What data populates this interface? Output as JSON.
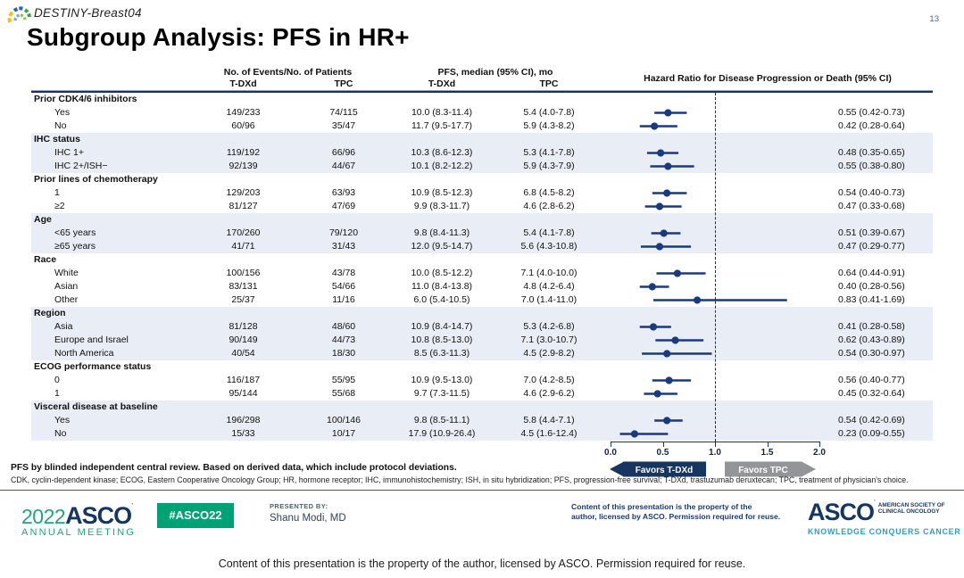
{
  "slide": {
    "trial_name": "DESTINY-Breast04",
    "page_number": "13",
    "title": "Subgroup Analysis: PFS in HR+"
  },
  "colors": {
    "navy": "#1a3a7e",
    "band": "#e9edf5",
    "favors_tpc_gray": "#939598",
    "asco_green": "#00a175",
    "asco_navy": "#16355f",
    "asco_teal": "#2a9fc0"
  },
  "table": {
    "col_headers": {
      "events_group": "No. of Events/No. of Patients",
      "pfs_group": "PFS, median (95% CI), mo",
      "hr_group": "Hazard Ratio for Disease Progression or Death  (95% CI)",
      "tdxd": "T-DXd",
      "tpc": "TPC"
    },
    "sections": [
      {
        "label": "Prior CDK4/6 inhibitors",
        "shaded": false,
        "rows": [
          {
            "label": "Yes",
            "events_tdxd": "149/233",
            "events_tpc": "74/115",
            "pfs_tdxd": "10.0 (8.3-11.4)",
            "pfs_tpc": "5.4 (4.0-7.8)",
            "hr": 0.55,
            "lo": 0.42,
            "hi": 0.73,
            "hr_text": "0.55 (0.42-0.73)"
          },
          {
            "label": "No",
            "events_tdxd": "60/96",
            "events_tpc": "35/47",
            "pfs_tdxd": "11.7 (9.5-17.7)",
            "pfs_tpc": "5.9 (4.3-8.2)",
            "hr": 0.42,
            "lo": 0.28,
            "hi": 0.64,
            "hr_text": "0.42 (0.28-0.64)"
          }
        ]
      },
      {
        "label": "IHC status",
        "shaded": true,
        "rows": [
          {
            "label": "IHC 1+",
            "events_tdxd": "119/192",
            "events_tpc": "66/96",
            "pfs_tdxd": "10.3 (8.6-12.3)",
            "pfs_tpc": "5.3 (4.1-7.8)",
            "hr": 0.48,
            "lo": 0.35,
            "hi": 0.65,
            "hr_text": "0.48 (0.35-0.65)"
          },
          {
            "label": "IHC 2+/ISH−",
            "events_tdxd": "92/139",
            "events_tpc": "44/67",
            "pfs_tdxd": "10.1 (8.2-12.2)",
            "pfs_tpc": "5.9 (4.3-7.9)",
            "hr": 0.55,
            "lo": 0.38,
            "hi": 0.8,
            "hr_text": "0.55 (0.38-0.80)"
          }
        ]
      },
      {
        "label": "Prior lines of chemotherapy",
        "shaded": false,
        "rows": [
          {
            "label": "1",
            "events_tdxd": "129/203",
            "events_tpc": "63/93",
            "pfs_tdxd": "10.9 (8.5-12.3)",
            "pfs_tpc": "6.8 (4.5-8.2)",
            "hr": 0.54,
            "lo": 0.4,
            "hi": 0.73,
            "hr_text": "0.54 (0.40-0.73)"
          },
          {
            "label": "≥2",
            "events_tdxd": "81/127",
            "events_tpc": "47/69",
            "pfs_tdxd": "9.9 (8.3-11.7)",
            "pfs_tpc": "4.6 (2.8-6.2)",
            "hr": 0.47,
            "lo": 0.33,
            "hi": 0.68,
            "hr_text": "0.47 (0.33-0.68)"
          }
        ]
      },
      {
        "label": "Age",
        "shaded": true,
        "rows": [
          {
            "label": "<65 years",
            "events_tdxd": "170/260",
            "events_tpc": "79/120",
            "pfs_tdxd": "9.8 (8.4-11.3)",
            "pfs_tpc": "5.4 (4.1-7.8)",
            "hr": 0.51,
            "lo": 0.39,
            "hi": 0.67,
            "hr_text": "0.51 (0.39-0.67)"
          },
          {
            "label": "≥65 years",
            "events_tdxd": "41/71",
            "events_tpc": "31/43",
            "pfs_tdxd": "12.0 (9.5-14.7)",
            "pfs_tpc": "5.6 (4.3-10.8)",
            "hr": 0.47,
            "lo": 0.29,
            "hi": 0.77,
            "hr_text": "0.47 (0.29-0.77)"
          }
        ]
      },
      {
        "label": "Race",
        "shaded": false,
        "rows": [
          {
            "label": "White",
            "events_tdxd": "100/156",
            "events_tpc": "43/78",
            "pfs_tdxd": "10.0 (8.5-12.2)",
            "pfs_tpc": "7.1 (4.0-10.0)",
            "hr": 0.64,
            "lo": 0.44,
            "hi": 0.91,
            "hr_text": "0.64 (0.44-0.91)"
          },
          {
            "label": "Asian",
            "events_tdxd": "83/131",
            "events_tpc": "54/66",
            "pfs_tdxd": "11.0 (8.4-13.8)",
            "pfs_tpc": "4.8 (4.2-6.4)",
            "hr": 0.4,
            "lo": 0.28,
            "hi": 0.56,
            "hr_text": "0.40 (0.28-0.56)"
          },
          {
            "label": "Other",
            "events_tdxd": "25/37",
            "events_tpc": "11/16",
            "pfs_tdxd": "6.0 (5.4-10.5)",
            "pfs_tpc": "7.0 (1.4-11.0)",
            "hr": 0.83,
            "lo": 0.41,
            "hi": 1.69,
            "hr_text": "0.83 (0.41-1.69)"
          }
        ]
      },
      {
        "label": "Region",
        "shaded": true,
        "rows": [
          {
            "label": "Asia",
            "events_tdxd": "81/128",
            "events_tpc": "48/60",
            "pfs_tdxd": "10.9 (8.4-14.7)",
            "pfs_tpc": "5.3 (4.2-6.8)",
            "hr": 0.41,
            "lo": 0.28,
            "hi": 0.58,
            "hr_text": "0.41 (0.28-0.58)"
          },
          {
            "label": "Europe and Israel",
            "events_tdxd": "90/149",
            "events_tpc": "44/73",
            "pfs_tdxd": "10.8 (8.5-13.0)",
            "pfs_tpc": "7.1 (3.0-10.7)",
            "hr": 0.62,
            "lo": 0.43,
            "hi": 0.89,
            "hr_text": "0.62 (0.43-0.89)"
          },
          {
            "label": "North America",
            "events_tdxd": "40/54",
            "events_tpc": "18/30",
            "pfs_tdxd": "8.5 (6.3-11.3)",
            "pfs_tpc": "4.5 (2.9-8.2)",
            "hr": 0.54,
            "lo": 0.3,
            "hi": 0.97,
            "hr_text": "0.54 (0.30-0.97)"
          }
        ]
      },
      {
        "label": "ECOG performance status",
        "shaded": false,
        "rows": [
          {
            "label": "0",
            "events_tdxd": "116/187",
            "events_tpc": "55/95",
            "pfs_tdxd": "10.9 (9.5-13.0)",
            "pfs_tpc": "7.0 (4.2-8.5)",
            "hr": 0.56,
            "lo": 0.4,
            "hi": 0.77,
            "hr_text": "0.56 (0.40-0.77)"
          },
          {
            "label": "1",
            "events_tdxd": "95/144",
            "events_tpc": "55/68",
            "pfs_tdxd": "9.7 (7.3-11.5)",
            "pfs_tpc": "4.6 (2.9-6.2)",
            "hr": 0.45,
            "lo": 0.32,
            "hi": 0.64,
            "hr_text": "0.45 (0.32-0.64)"
          }
        ]
      },
      {
        "label": "Visceral disease at baseline",
        "shaded": true,
        "rows": [
          {
            "label": "Yes",
            "events_tdxd": "196/298",
            "events_tpc": "100/146",
            "pfs_tdxd": "9.8 (8.5-11.1)",
            "pfs_tpc": "5.8 (4.4-7.1)",
            "hr": 0.54,
            "lo": 0.42,
            "hi": 0.69,
            "hr_text": "0.54 (0.42-0.69)"
          },
          {
            "label": "No",
            "events_tdxd": "15/33",
            "events_tpc": "10/17",
            "pfs_tdxd": "17.9 (10.9-26.4)",
            "pfs_tpc": "4.5 (1.6-12.4)",
            "hr": 0.23,
            "lo": 0.09,
            "hi": 0.55,
            "hr_text": "0.23 (0.09-0.55)"
          }
        ]
      }
    ]
  },
  "chart_data": {
    "type": "scatter",
    "subtype": "forest_plot",
    "title": "Hazard Ratio for Disease Progression or Death (95% CI)",
    "xlim": [
      0.0,
      2.0
    ],
    "x_ticks": [
      0.0,
      0.5,
      1.0,
      1.5,
      2.0
    ],
    "reference_line_x": 1.0,
    "favors_left_label": "Favors T-DXd",
    "favors_right_label": "Favors TPC",
    "points": [
      {
        "subgroup": "Prior CDK4/6 inhibitors – Yes",
        "hr": 0.55,
        "ci": [
          0.42,
          0.73
        ]
      },
      {
        "subgroup": "Prior CDK4/6 inhibitors – No",
        "hr": 0.42,
        "ci": [
          0.28,
          0.64
        ]
      },
      {
        "subgroup": "IHC 1+",
        "hr": 0.48,
        "ci": [
          0.35,
          0.65
        ]
      },
      {
        "subgroup": "IHC 2+/ISH−",
        "hr": 0.55,
        "ci": [
          0.38,
          0.8
        ]
      },
      {
        "subgroup": "Prior lines of chemotherapy – 1",
        "hr": 0.54,
        "ci": [
          0.4,
          0.73
        ]
      },
      {
        "subgroup": "Prior lines of chemotherapy – ≥2",
        "hr": 0.47,
        "ci": [
          0.33,
          0.68
        ]
      },
      {
        "subgroup": "Age <65 years",
        "hr": 0.51,
        "ci": [
          0.39,
          0.67
        ]
      },
      {
        "subgroup": "Age ≥65 years",
        "hr": 0.47,
        "ci": [
          0.29,
          0.77
        ]
      },
      {
        "subgroup": "Race – White",
        "hr": 0.64,
        "ci": [
          0.44,
          0.91
        ]
      },
      {
        "subgroup": "Race – Asian",
        "hr": 0.4,
        "ci": [
          0.28,
          0.56
        ]
      },
      {
        "subgroup": "Race – Other",
        "hr": 0.83,
        "ci": [
          0.41,
          1.69
        ]
      },
      {
        "subgroup": "Region – Asia",
        "hr": 0.41,
        "ci": [
          0.28,
          0.58
        ]
      },
      {
        "subgroup": "Region – Europe and Israel",
        "hr": 0.62,
        "ci": [
          0.43,
          0.89
        ]
      },
      {
        "subgroup": "Region – North America",
        "hr": 0.54,
        "ci": [
          0.3,
          0.97
        ]
      },
      {
        "subgroup": "ECOG performance status 0",
        "hr": 0.56,
        "ci": [
          0.4,
          0.77
        ]
      },
      {
        "subgroup": "ECOG performance status 1",
        "hr": 0.45,
        "ci": [
          0.32,
          0.64
        ]
      },
      {
        "subgroup": "Visceral disease at baseline – Yes",
        "hr": 0.54,
        "ci": [
          0.42,
          0.69
        ]
      },
      {
        "subgroup": "Visceral disease at baseline – No",
        "hr": 0.23,
        "ci": [
          0.09,
          0.55
        ]
      }
    ]
  },
  "axis": {
    "tick_labels": [
      "0.0",
      "0.5",
      "1.0",
      "1.5",
      "2.0"
    ],
    "favors_left": "Favors T-DXd",
    "favors_right": "Favors TPC"
  },
  "footnotes": {
    "line1": "PFS by blinded independent central review. Based on derived data, which include protocol deviations.",
    "line2": "CDK, cyclin-dependent kinase; ECOG, Eastern Cooperative Oncology Group; HR, hormone receptor; IHC, immunohistochemistry; ISH, in situ hybridization; PFS, progression-free survival; T-DXd, trastuzumab deruxtecan; TPC, treatment of physician's choice."
  },
  "footer": {
    "meeting_year": "2022",
    "meeting_org": "ASCO",
    "meeting_name": "ANNUAL MEETING",
    "hashtag": "#ASCO22",
    "presented_by_label": "PRESENTED BY:",
    "presenter": "Shanu Modi, MD",
    "notice_line1": "Content of this presentation is the property of the",
    "notice_line2": "author, licensed by ASCO. Permission required for reuse.",
    "society_name": "ASCO",
    "society_sub1": "AMERICAN SOCIETY OF",
    "society_sub2": "CLINICAL ONCOLOGY",
    "society_tagline": "KNOWLEDGE CONQUERS CANCER"
  },
  "bottom_strip": {
    "text": "Content of this presentation  is the property of the author, licensed by ASCO. Permission required for reuse."
  }
}
